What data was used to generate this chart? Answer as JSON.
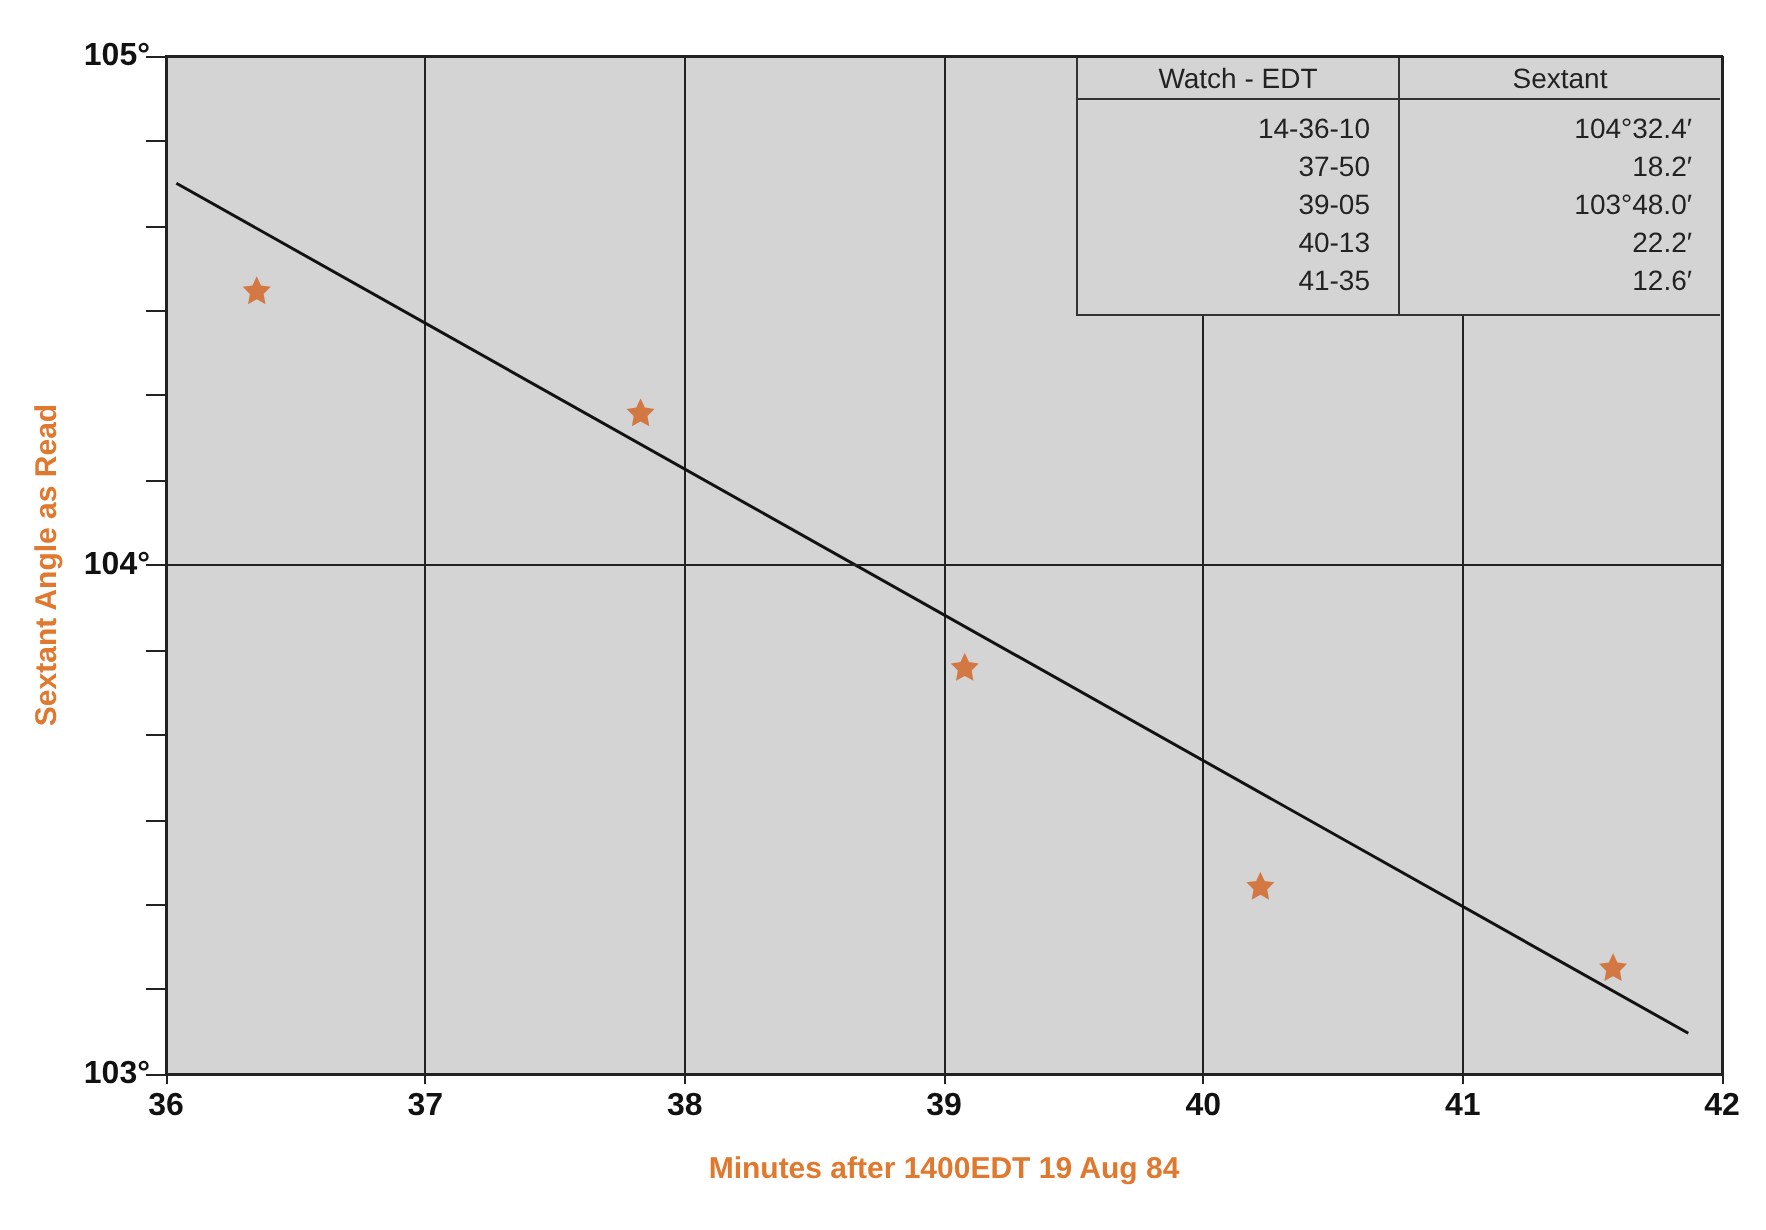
{
  "chart_data": {
    "type": "scatter",
    "xlabel": "Minutes after 1400EDT 19 Aug 84",
    "ylabel": "Sextant Angle as Read",
    "x": [
      36.35,
      37.83,
      39.08,
      40.22,
      41.58
    ],
    "series": [
      {
        "color": "#d2601e",
        "values": [
          104.54,
          104.3,
          103.8,
          103.37,
          103.21
        ]
      },
      {
        "type": "line",
        "marker": "none",
        "color": "#111111",
        "x": [
          36.04,
          41.87
        ],
        "values": [
          104.75,
          103.08
        ]
      }
    ],
    "marker": "star",
    "grid": true,
    "xlim": [
      36,
      42
    ],
    "xticks": [
      36,
      37,
      38,
      39,
      40,
      41,
      42
    ],
    "ylim": [
      103,
      105
    ],
    "yticks": [
      {
        "value": 103,
        "label": "103°"
      },
      {
        "value": 103.1667,
        "label": null
      },
      {
        "value": 103.3333,
        "label": null
      },
      {
        "value": 103.5,
        "label": null
      },
      {
        "value": 103.6667,
        "label": null
      },
      {
        "value": 103.8333,
        "label": null
      },
      {
        "value": 104,
        "label": "104°"
      },
      {
        "value": 104.1667,
        "label": null
      },
      {
        "value": 104.3333,
        "label": null
      },
      {
        "value": 104.5,
        "label": null
      },
      {
        "value": 104.6667,
        "label": null
      },
      {
        "value": 104.8333,
        "label": null
      },
      {
        "value": 105,
        "label": "105°"
      }
    ],
    "annotations": [
      "Watch - EDT",
      "Sextant",
      "14-36-10",
      "104°32.4′",
      "37-50",
      "18.2′",
      "39-05",
      "103°48.0′",
      "40-13",
      "22.2′",
      "41-35",
      "12.6′"
    ]
  }
}
